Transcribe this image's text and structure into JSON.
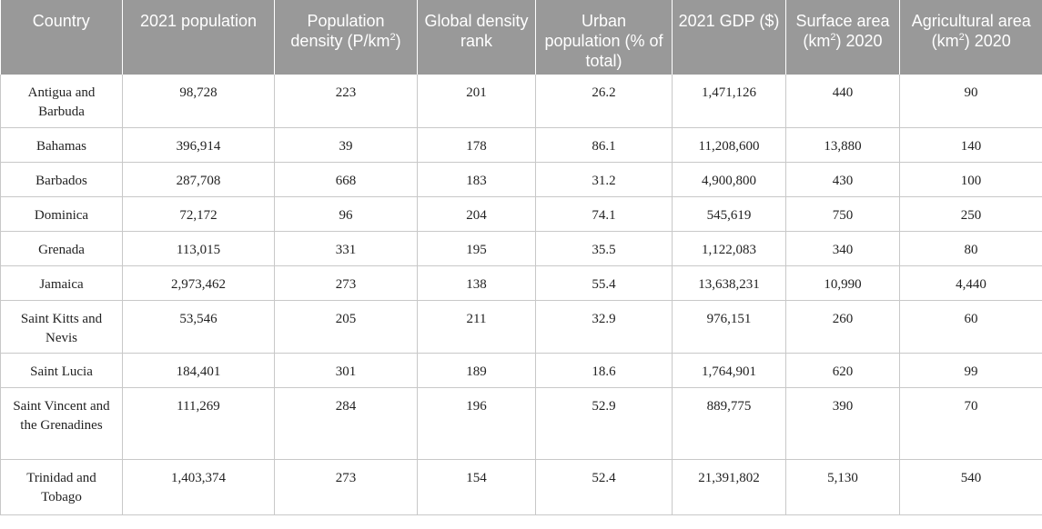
{
  "table": {
    "headers": [
      {
        "pre": "Country",
        "sup": "",
        "post": ""
      },
      {
        "pre": "2021 population",
        "sup": "",
        "post": ""
      },
      {
        "pre": "Population density (P/km",
        "sup": "2",
        "post": ")"
      },
      {
        "pre": "Global density rank",
        "sup": "",
        "post": ""
      },
      {
        "pre": "Urban population (% of total)",
        "sup": "",
        "post": ""
      },
      {
        "pre": "2021 GDP ($)",
        "sup": "",
        "post": ""
      },
      {
        "pre": "Surface area (km",
        "sup": "2",
        "post": ") 2020"
      },
      {
        "pre": "Agricultural area (km",
        "sup": "2",
        "post": ") 2020"
      }
    ],
    "rows": [
      [
        "Antigua and Barbuda",
        "98,728",
        "223",
        "201",
        "26.2",
        "1,471,126",
        "440",
        "90"
      ],
      [
        "Bahamas",
        "396,914",
        "39",
        "178",
        "86.1",
        "11,208,600",
        "13,880",
        "140"
      ],
      [
        "Barbados",
        "287,708",
        "668",
        "183",
        "31.2",
        "4,900,800",
        "430",
        "100"
      ],
      [
        "Dominica",
        "72,172",
        "96",
        "204",
        "74.1",
        "545,619",
        "750",
        "250"
      ],
      [
        "Grenada",
        "113,015",
        "331",
        "195",
        "35.5",
        "1,122,083",
        "340",
        "80"
      ],
      [
        "Jamaica",
        "2,973,462",
        "273",
        "138",
        "55.4",
        "13,638,231",
        "10,990",
        "4,440"
      ],
      [
        "Saint Kitts and Nevis",
        "53,546",
        "205",
        "211",
        "32.9",
        "976,151",
        "260",
        "60"
      ],
      [
        "Saint Lucia",
        "184,401",
        "301",
        "189",
        "18.6",
        "1,764,901",
        "620",
        "99"
      ],
      [
        "Saint Vincent and the Grenadines",
        "111,269",
        "284",
        "196",
        "52.9",
        "889,775",
        "390",
        "70"
      ],
      [
        "Trinidad and Tobago",
        "1,403,374",
        "273",
        "154",
        "52.4",
        "21,391,802",
        "5,130",
        "540"
      ]
    ]
  }
}
